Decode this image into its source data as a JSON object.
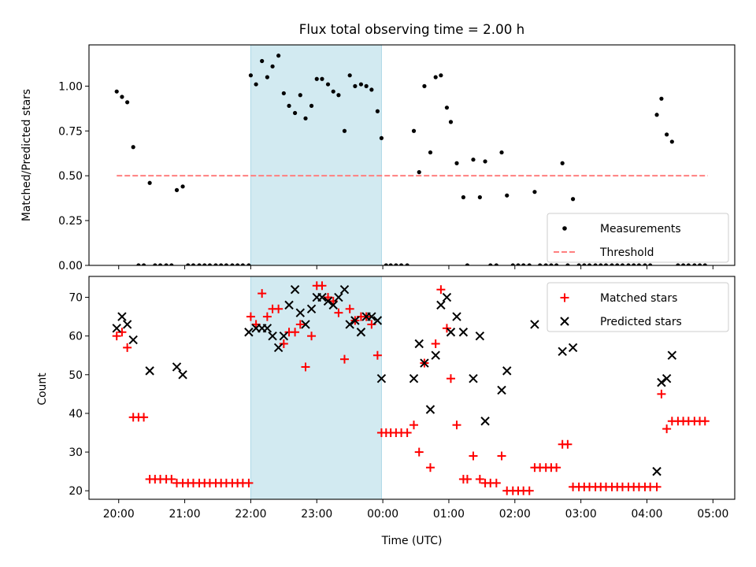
{
  "title": "Flux total observing time = 2.00 h",
  "colors": {
    "shade": "#add8e6",
    "measure": "#000000",
    "threshold": "#ff7f7f",
    "matched": "#ff0000",
    "predicted": "#000000"
  },
  "chart_data": [
    {
      "type": "scatter",
      "ylabel": "Matched/Predicted stars",
      "xlim": [
        19.55,
        29.33
      ],
      "ylim": [
        0,
        1.23
      ],
      "yticks": [
        0.0,
        0.25,
        0.5,
        0.75,
        1.0
      ],
      "ytick_labels": [
        "0.00",
        "0.25",
        "0.50",
        "0.75",
        "1.00"
      ],
      "shaded_span": [
        22.0,
        23.98
      ],
      "threshold": {
        "value": 0.5,
        "x_range": [
          19.97,
          28.92
        ],
        "label": "Threshold"
      },
      "legend": {
        "position": "bottom-right",
        "entries": [
          "Measurements",
          "Threshold"
        ]
      },
      "series": [
        {
          "name": "Measurements",
          "x": [
            19.97,
            20.05,
            20.13,
            20.22,
            20.3,
            20.38,
            20.47,
            20.55,
            20.63,
            20.72,
            20.8,
            20.88,
            20.97,
            21.05,
            21.13,
            21.22,
            21.3,
            21.38,
            21.47,
            21.55,
            21.63,
            21.72,
            21.8,
            21.88,
            21.97,
            22.0,
            22.08,
            22.17,
            22.25,
            22.33,
            22.42,
            22.5,
            22.58,
            22.67,
            22.75,
            22.83,
            22.92,
            23.0,
            23.08,
            23.17,
            23.25,
            23.33,
            23.42,
            23.5,
            23.58,
            23.67,
            23.75,
            23.83,
            23.92,
            23.98,
            24.05,
            24.12,
            24.2,
            24.28,
            24.37,
            24.47,
            24.55,
            24.63,
            24.72,
            24.8,
            24.88,
            24.97,
            25.03,
            25.12,
            25.22,
            25.28,
            25.37,
            25.47,
            25.55,
            25.63,
            25.72,
            25.8,
            25.88,
            25.97,
            26.05,
            26.13,
            26.22,
            26.3,
            26.38,
            26.47,
            26.55,
            26.63,
            26.72,
            26.8,
            26.88,
            26.97,
            27.05,
            27.13,
            27.22,
            27.3,
            27.38,
            27.47,
            27.55,
            27.63,
            27.72,
            27.8,
            27.88,
            27.97,
            28.05,
            28.15,
            28.22,
            28.3,
            28.38,
            28.47,
            28.55,
            28.63,
            28.72,
            28.8,
            28.88
          ],
          "y": [
            0.97,
            0.94,
            0.91,
            0.66,
            0.0,
            0.0,
            0.46,
            0.0,
            0.0,
            0.0,
            0.0,
            0.42,
            0.44,
            0.0,
            0.0,
            0.0,
            0.0,
            0.0,
            0.0,
            0.0,
            0.0,
            0.0,
            0.0,
            0.0,
            0.0,
            1.06,
            1.01,
            1.14,
            1.05,
            1.11,
            1.17,
            0.96,
            0.89,
            0.85,
            0.95,
            0.82,
            0.89,
            1.04,
            1.04,
            1.01,
            0.97,
            0.95,
            0.75,
            1.06,
            1.0,
            1.01,
            1.0,
            0.98,
            0.86,
            0.71,
            0.0,
            0.0,
            0.0,
            0.0,
            0.0,
            0.75,
            0.52,
            1.0,
            0.63,
            1.05,
            1.06,
            0.88,
            0.8,
            0.57,
            0.38,
            0.0,
            0.59,
            0.38,
            0.58,
            0.0,
            0.0,
            0.63,
            0.39,
            0.0,
            0.0,
            0.0,
            0.0,
            0.41,
            0.0,
            0.0,
            0.0,
            0.0,
            0.57,
            0.0,
            0.37,
            0.0,
            0.0,
            0.0,
            0.0,
            0.0,
            0.0,
            0.0,
            0.0,
            0.0,
            0.0,
            0.0,
            0.0,
            0.0,
            0.0,
            0.84,
            0.93,
            0.73,
            0.69,
            0.0,
            0.0,
            0.0,
            0.0,
            0.0,
            0.0
          ]
        }
      ]
    },
    {
      "type": "scatter",
      "xlabel": "Time (UTC)",
      "ylabel": "Count",
      "xlim": [
        19.55,
        29.33
      ],
      "ylim": [
        17.8,
        75.4
      ],
      "yticks": [
        20,
        30,
        40,
        50,
        60,
        70
      ],
      "ytick_labels": [
        "20",
        "30",
        "40",
        "50",
        "60",
        "70"
      ],
      "xticks": [
        20,
        21,
        22,
        23,
        24,
        25,
        26,
        27,
        28,
        29
      ],
      "xtick_labels": [
        "20:00",
        "21:00",
        "22:00",
        "23:00",
        "00:00",
        "01:00",
        "02:00",
        "03:00",
        "04:00",
        "05:00"
      ],
      "shaded_span": [
        22.0,
        23.98
      ],
      "legend": {
        "position": "top-right",
        "entries": [
          "Matched stars",
          "Predicted stars"
        ]
      },
      "series": [
        {
          "name": "Matched stars",
          "marker": "+",
          "x": [
            19.97,
            20.05,
            20.13,
            20.22,
            20.3,
            20.38,
            20.47,
            20.55,
            20.63,
            20.72,
            20.8,
            20.88,
            20.97,
            21.05,
            21.13,
            21.22,
            21.3,
            21.38,
            21.47,
            21.55,
            21.63,
            21.72,
            21.8,
            21.88,
            21.97,
            22.0,
            22.08,
            22.17,
            22.25,
            22.33,
            22.42,
            22.5,
            22.58,
            22.67,
            22.75,
            22.83,
            22.92,
            23.0,
            23.08,
            23.17,
            23.25,
            23.33,
            23.42,
            23.5,
            23.58,
            23.67,
            23.75,
            23.83,
            23.92,
            23.98,
            24.05,
            24.12,
            24.2,
            24.28,
            24.37,
            24.47,
            24.55,
            24.63,
            24.72,
            24.8,
            24.88,
            24.97,
            25.03,
            25.12,
            25.22,
            25.28,
            25.37,
            25.47,
            25.55,
            25.63,
            25.72,
            25.8,
            25.88,
            25.97,
            26.05,
            26.13,
            26.22,
            26.3,
            26.38,
            26.47,
            26.55,
            26.63,
            26.72,
            26.8,
            26.88,
            26.97,
            27.05,
            27.13,
            27.22,
            27.3,
            27.38,
            27.47,
            27.55,
            27.63,
            27.72,
            27.8,
            27.88,
            27.97,
            28.05,
            28.15,
            28.22,
            28.3,
            28.38,
            28.47,
            28.55,
            28.63,
            28.72,
            28.8,
            28.88
          ],
          "y": [
            60,
            61,
            57,
            39,
            39,
            39,
            23,
            23,
            23,
            23,
            23,
            22,
            22,
            22,
            22,
            22,
            22,
            22,
            22,
            22,
            22,
            22,
            22,
            22,
            22,
            65,
            63,
            71,
            65,
            67,
            67,
            58,
            61,
            61,
            63,
            52,
            60,
            73,
            73,
            70,
            69,
            66,
            54,
            67,
            64,
            65,
            65,
            63,
            55,
            35,
            35,
            35,
            35,
            35,
            35,
            37,
            30,
            53,
            26,
            58,
            72,
            62,
            49,
            37,
            23,
            23,
            29,
            23,
            22,
            22,
            22,
            29,
            20,
            20,
            20,
            20,
            20,
            26,
            26,
            26,
            26,
            26,
            32,
            32,
            21,
            21,
            21,
            21,
            21,
            21,
            21,
            21,
            21,
            21,
            21,
            21,
            21,
            21,
            21,
            21,
            45,
            36,
            38,
            38,
            38,
            38,
            38,
            38,
            38
          ]
        },
        {
          "name": "Predicted stars",
          "marker": "x",
          "x": [
            19.97,
            20.05,
            20.13,
            20.22,
            20.47,
            20.88,
            20.97,
            21.97,
            22.08,
            22.17,
            22.25,
            22.33,
            22.42,
            22.5,
            22.58,
            22.67,
            22.75,
            22.83,
            22.92,
            23.0,
            23.08,
            23.17,
            23.25,
            23.33,
            23.42,
            23.5,
            23.58,
            23.67,
            23.75,
            23.83,
            23.92,
            23.98,
            24.47,
            24.55,
            24.63,
            24.72,
            24.8,
            24.88,
            24.97,
            25.03,
            25.12,
            25.22,
            25.37,
            25.47,
            25.55,
            25.8,
            25.88,
            26.3,
            26.72,
            26.88,
            28.15,
            28.22,
            28.3,
            28.38
          ],
          "y": [
            62,
            65,
            63,
            59,
            51,
            52,
            50,
            61,
            62,
            62,
            62,
            60,
            57,
            60,
            68,
            72,
            66,
            63,
            67,
            70,
            70,
            69,
            68,
            70,
            72,
            63,
            64,
            61,
            65,
            65,
            64,
            49,
            49,
            58,
            53,
            41,
            55,
            68,
            70,
            61,
            65,
            61,
            49,
            60,
            38,
            46,
            51,
            63,
            56,
            57,
            25,
            48,
            49,
            55
          ]
        }
      ]
    }
  ]
}
